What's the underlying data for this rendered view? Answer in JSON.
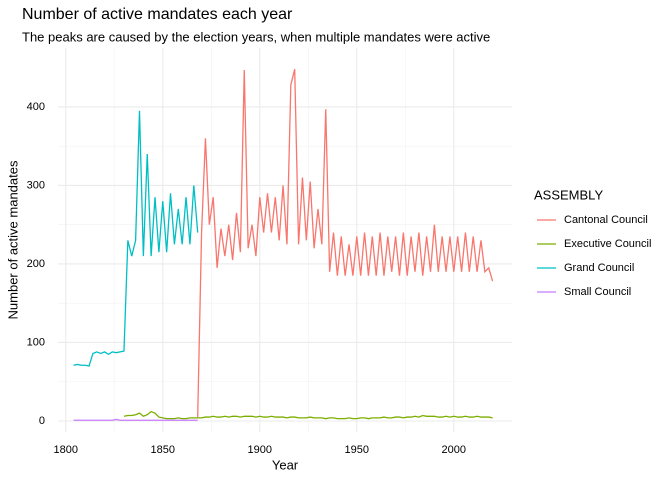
{
  "chart_data": {
    "type": "line",
    "title": "Number of active mandates each year",
    "subtitle": "The peaks are caused by the election years, when multiple mandates were active",
    "x_label": "Year",
    "y_label": "Number of active mandates",
    "legend_title": "ASSEMBLY",
    "legend_position": "right",
    "grid": true,
    "xlim": [
      1796,
      2030
    ],
    "xticks": [
      1800,
      1850,
      1900,
      1950,
      2000
    ],
    "ylim": [
      -14,
      475
    ],
    "yticks": [
      0,
      100,
      200,
      300,
      400
    ],
    "x": [
      1804,
      1806,
      1808,
      1810,
      1812,
      1814,
      1816,
      1818,
      1820,
      1822,
      1824,
      1826,
      1828,
      1830,
      1832,
      1834,
      1836,
      1838,
      1840,
      1842,
      1844,
      1846,
      1848,
      1850,
      1852,
      1854,
      1856,
      1858,
      1860,
      1862,
      1864,
      1866,
      1868,
      1870,
      1872,
      1874,
      1876,
      1878,
      1880,
      1882,
      1884,
      1886,
      1888,
      1890,
      1892,
      1894,
      1896,
      1898,
      1900,
      1902,
      1904,
      1906,
      1908,
      1910,
      1912,
      1914,
      1916,
      1918,
      1920,
      1922,
      1924,
      1926,
      1928,
      1930,
      1932,
      1934,
      1936,
      1938,
      1940,
      1942,
      1944,
      1946,
      1948,
      1950,
      1952,
      1954,
      1956,
      1958,
      1960,
      1962,
      1964,
      1966,
      1968,
      1970,
      1972,
      1974,
      1976,
      1978,
      1980,
      1982,
      1984,
      1986,
      1988,
      1990,
      1992,
      1994,
      1996,
      1998,
      2000,
      2002,
      2004,
      2006,
      2008,
      2010,
      2012,
      2014,
      2016,
      2018,
      2020
    ],
    "series": [
      {
        "name": "Cantonal Council",
        "color": "#F8766D",
        "values": [
          null,
          null,
          null,
          null,
          null,
          null,
          null,
          null,
          null,
          null,
          null,
          null,
          null,
          null,
          null,
          null,
          null,
          null,
          null,
          null,
          null,
          null,
          null,
          null,
          null,
          null,
          null,
          null,
          null,
          null,
          null,
          null,
          5,
          240,
          360,
          250,
          285,
          195,
          245,
          210,
          250,
          205,
          265,
          215,
          447,
          220,
          250,
          210,
          285,
          240,
          290,
          240,
          285,
          230,
          300,
          225,
          428,
          448,
          225,
          310,
          230,
          305,
          220,
          270,
          225,
          397,
          190,
          240,
          185,
          235,
          185,
          225,
          185,
          235,
          185,
          240,
          185,
          235,
          185,
          240,
          185,
          235,
          190,
          235,
          185,
          240,
          185,
          235,
          190,
          240,
          185,
          235,
          190,
          250,
          190,
          235,
          190,
          235,
          190,
          235,
          190,
          240,
          190,
          235,
          190,
          230,
          190,
          195,
          178
        ]
      },
      {
        "name": "Executive Council",
        "color": "#7CAE00",
        "values": [
          null,
          null,
          null,
          null,
          null,
          null,
          null,
          null,
          null,
          null,
          null,
          null,
          null,
          6,
          7,
          7,
          8,
          10,
          6,
          8,
          12,
          10,
          5,
          4,
          3,
          3,
          3,
          4,
          3,
          3,
          4,
          4,
          4,
          4,
          5,
          5,
          6,
          5,
          5,
          6,
          5,
          6,
          6,
          5,
          6,
          6,
          6,
          5,
          6,
          5,
          5,
          6,
          5,
          5,
          5,
          4,
          5,
          5,
          4,
          4,
          4,
          5,
          4,
          4,
          4,
          3,
          4,
          4,
          3,
          3,
          3,
          4,
          3,
          3,
          4,
          4,
          3,
          4,
          4,
          4,
          5,
          4,
          4,
          5,
          5,
          4,
          5,
          5,
          6,
          5,
          7,
          6,
          6,
          6,
          5,
          5,
          6,
          5,
          6,
          5,
          5,
          6,
          5,
          5,
          6,
          5,
          5,
          5,
          4
        ]
      },
      {
        "name": "Grand Council",
        "color": "#00BFC4",
        "values": [
          71,
          72,
          71,
          71,
          70,
          86,
          88,
          86,
          88,
          85,
          88,
          87,
          88,
          89,
          230,
          210,
          230,
          395,
          210,
          340,
          210,
          285,
          215,
          280,
          215,
          290,
          225,
          270,
          225,
          285,
          225,
          300,
          240,
          null,
          null,
          null,
          null,
          null,
          null,
          null,
          null,
          null,
          null,
          null,
          null,
          null,
          null,
          null,
          null,
          null,
          null,
          null,
          null,
          null,
          null,
          null,
          null,
          null,
          null,
          null,
          null,
          null,
          null,
          null,
          null,
          null,
          null,
          null,
          null,
          null,
          null,
          null,
          null,
          null,
          null,
          null,
          null,
          null,
          null,
          null,
          null,
          null,
          null,
          null,
          null,
          null,
          null,
          null,
          null,
          null,
          null,
          null,
          null,
          null,
          null,
          null,
          null,
          null,
          null,
          null,
          null,
          null,
          null,
          null,
          null,
          null,
          null,
          null,
          null
        ]
      },
      {
        "name": "Small Council",
        "color": "#C77CFF",
        "values": [
          1,
          1,
          1,
          1,
          1,
          1,
          1,
          1,
          1,
          1,
          1,
          2,
          1,
          1,
          1,
          1,
          1,
          1,
          1,
          1,
          1,
          1,
          1,
          1,
          1,
          1,
          1,
          1,
          1,
          1,
          1,
          1,
          1,
          null,
          null,
          null,
          null,
          null,
          null,
          null,
          null,
          null,
          null,
          null,
          null,
          null,
          null,
          null,
          null,
          null,
          null,
          null,
          null,
          null,
          null,
          null,
          null,
          null,
          null,
          null,
          null,
          null,
          null,
          null,
          null,
          null,
          null,
          null,
          null,
          null,
          null,
          null,
          null,
          null,
          null,
          null,
          null,
          null,
          null,
          null,
          null,
          null,
          null,
          null,
          null,
          null,
          null,
          null,
          null,
          null,
          null,
          null,
          null,
          null,
          null,
          null,
          null,
          null,
          null,
          null,
          null,
          null,
          null,
          null,
          null,
          null,
          null,
          null,
          null
        ]
      }
    ]
  }
}
